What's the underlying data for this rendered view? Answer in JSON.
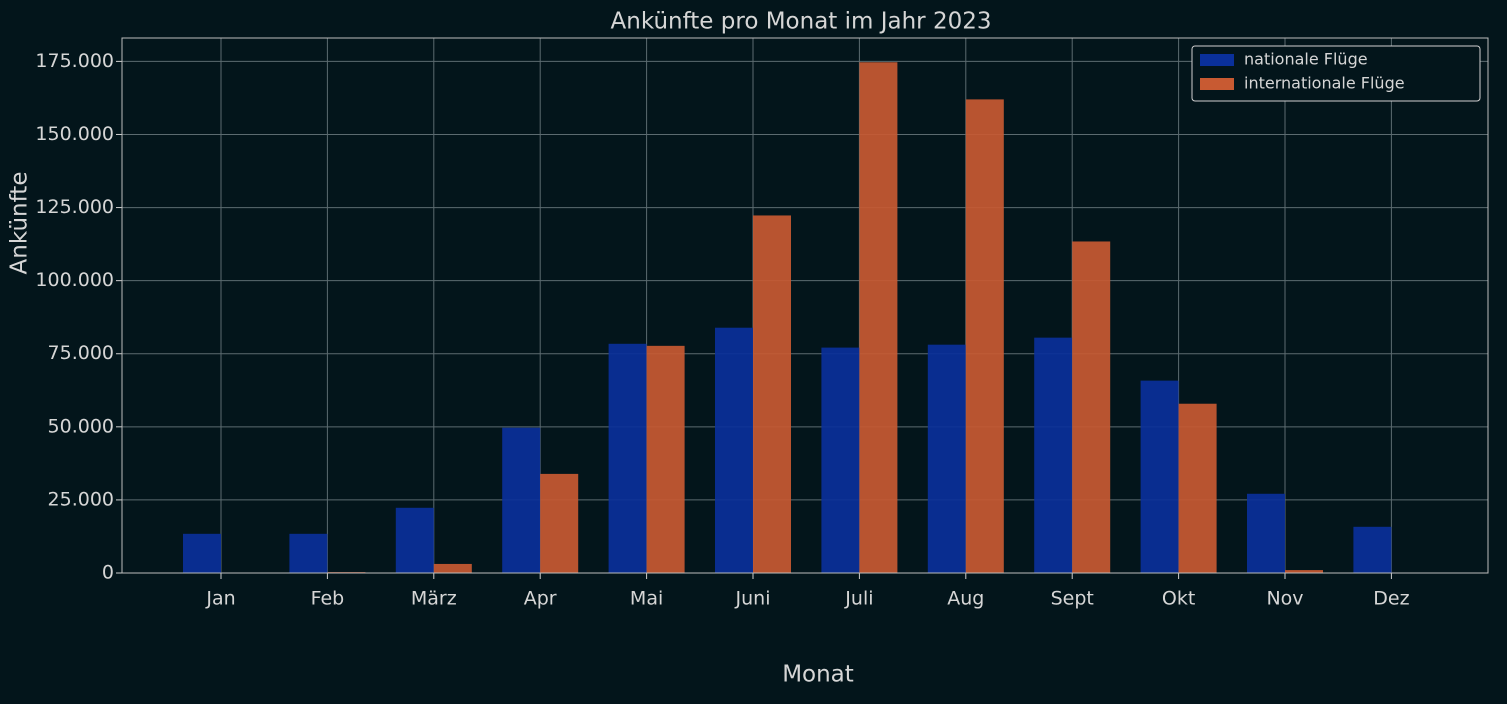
{
  "chart_data": {
    "type": "grouped-bar",
    "title": "Ankünfte pro Monat im Jahr 2023",
    "x_label": "Monat",
    "y_label": "Ankünfte",
    "categories": [
      "Jan",
      "Feb",
      "März",
      "Apr",
      "Mai",
      "Juni",
      "Juli",
      "Aug",
      "Sept",
      "Okt",
      "Nov",
      "Dez"
    ],
    "series": [
      {
        "name": "nationale Flüge",
        "color": "#0a309a",
        "values": [
          13400,
          13400,
          22300,
          49700,
          78400,
          83900,
          77100,
          78100,
          80500,
          65800,
          27100,
          15800
        ]
      },
      {
        "name": "internationale Flüge",
        "color": "#c85a32",
        "values": [
          0,
          300,
          3100,
          33900,
          77700,
          122300,
          174700,
          162000,
          113400,
          57900,
          1000,
          0
        ]
      }
    ],
    "ylim": [
      0,
      183000
    ],
    "yticks": [
      0,
      {
        "value": 25000,
        "label": "25.000"
      },
      {
        "value": 50000,
        "label": "50.000"
      },
      {
        "value": 75000,
        "label": "75.000"
      },
      {
        "value": 100000,
        "label": "100.000"
      },
      {
        "value": 125000,
        "label": "125.000"
      },
      {
        "value": 150000,
        "label": "150.000"
      },
      {
        "value": 175000,
        "label": "175.000"
      }
    ],
    "grid": true,
    "legend": "upper-right"
  }
}
